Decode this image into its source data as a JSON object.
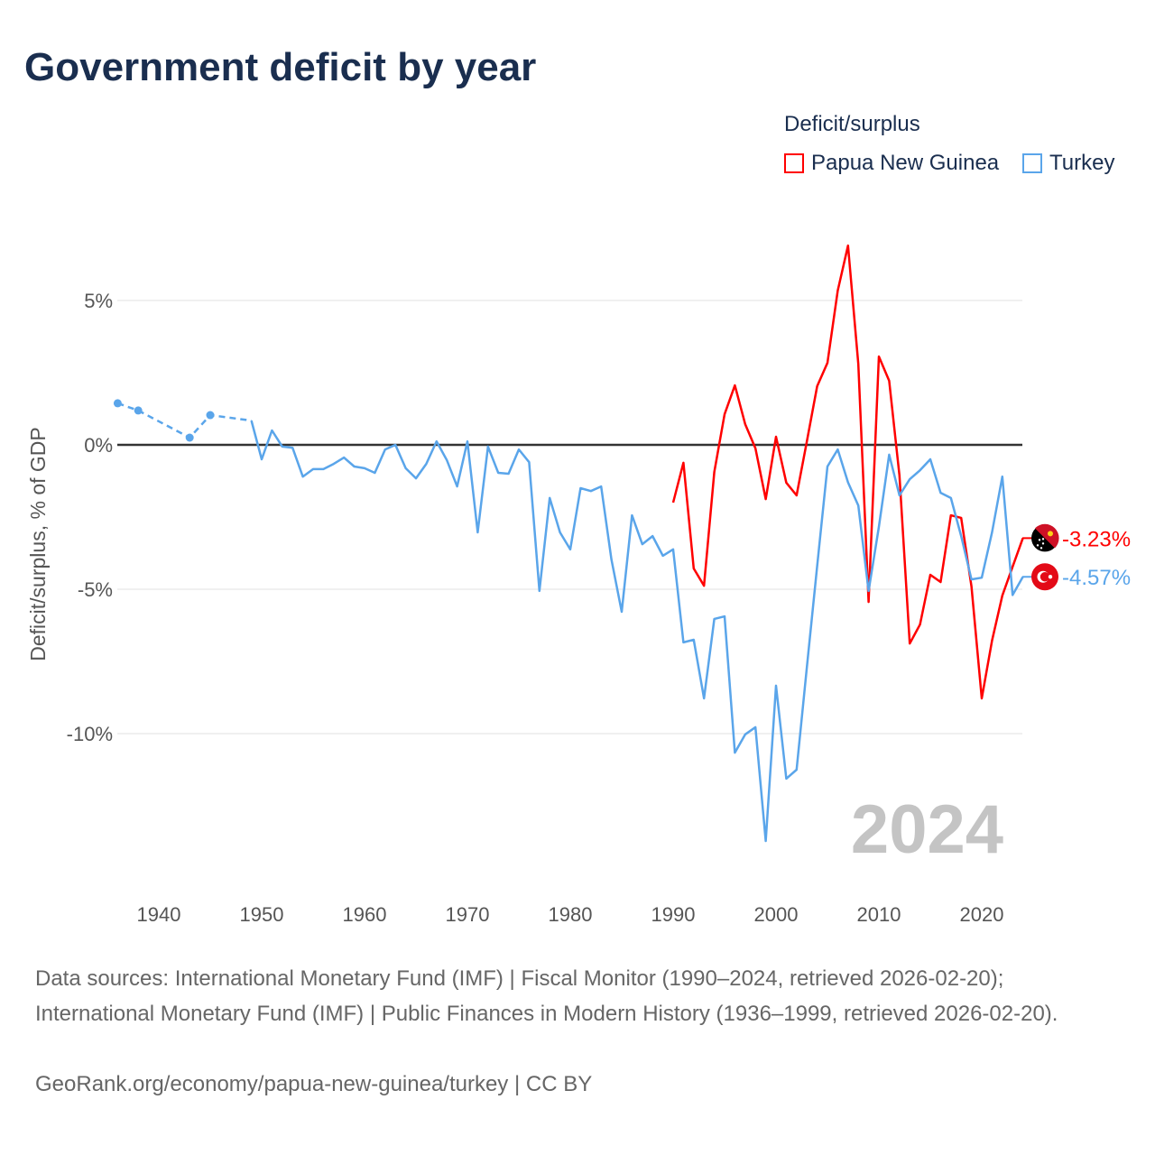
{
  "title": "Government deficit by year",
  "legend": {
    "title": "Deficit/surplus",
    "items": [
      {
        "label": "Papua New Guinea",
        "color": "#ff0000"
      },
      {
        "label": "Turkey",
        "color": "#5aa5ea"
      }
    ]
  },
  "chart_data": {
    "type": "line",
    "title": "Government deficit by year",
    "xlabel": "",
    "ylabel": "Deficit/surplus, % of GDP",
    "xlim": [
      1936,
      2024
    ],
    "ylim": [
      -14,
      7
    ],
    "x_ticks": [
      "1940",
      "1950",
      "1960",
      "1970",
      "1980",
      "1990",
      "2000",
      "2010",
      "2020"
    ],
    "y_ticks": [
      {
        "value": 5,
        "label": "5%"
      },
      {
        "value": 0,
        "label": "0%"
      },
      {
        "value": -5,
        "label": "-5%"
      },
      {
        "value": -10,
        "label": "-10%"
      }
    ],
    "current_year_label": "2024",
    "series": [
      {
        "name": "Papua New Guinea",
        "color": "#ff0000",
        "end_label": "-3.23%",
        "x": [
          1990,
          1991,
          1992,
          1993,
          1994,
          1995,
          1996,
          1997,
          1998,
          1999,
          2000,
          2001,
          2002,
          2003,
          2004,
          2005,
          2006,
          2007,
          2008,
          2009,
          2010,
          2011,
          2012,
          2013,
          2014,
          2015,
          2016,
          2017,
          2018,
          2019,
          2020,
          2021,
          2022,
          2023,
          2024
        ],
        "values": [
          -2.0,
          -0.62,
          -4.28,
          -4.88,
          -0.94,
          1.06,
          2.06,
          0.72,
          -0.12,
          -1.88,
          0.28,
          -1.31,
          -1.75,
          0.12,
          2.03,
          2.84,
          5.34,
          6.9,
          2.8,
          -5.44,
          3.06,
          2.22,
          -1.06,
          -6.88,
          -6.22,
          -4.5,
          -4.75,
          -2.44,
          -2.53,
          -4.9,
          -8.78,
          -6.78,
          -5.22,
          -4.22,
          -3.23
        ]
      },
      {
        "name": "Turkey",
        "color": "#5aa5ea",
        "end_label": "-4.57%",
        "sparse_x": [
          1936,
          1938,
          1943,
          1945,
          1949
        ],
        "sparse_values": [
          1.44,
          1.19,
          0.25,
          1.03,
          0.84
        ],
        "x": [
          1949,
          1950,
          1951,
          1952,
          1953,
          1954,
          1955,
          1956,
          1957,
          1958,
          1959,
          1960,
          1961,
          1962,
          1963,
          1964,
          1965,
          1966,
          1967,
          1968,
          1969,
          1970,
          1971,
          1972,
          1973,
          1974,
          1975,
          1976,
          1977,
          1978,
          1979,
          1980,
          1981,
          1982,
          1983,
          1984,
          1985,
          1986,
          1987,
          1988,
          1989,
          1990,
          1991,
          1992,
          1993,
          1994,
          1995,
          1996,
          1997,
          1998,
          1999,
          2000,
          2001,
          2002,
          2003,
          2004,
          2005,
          2006,
          2007,
          2008,
          2009,
          2010,
          2011,
          2012,
          2013,
          2014,
          2015,
          2016,
          2017,
          2018,
          2019,
          2020,
          2021,
          2022,
          2023,
          2024
        ],
        "values": [
          0.84,
          -0.5,
          0.5,
          -0.06,
          -0.1,
          -1.1,
          -0.84,
          -0.84,
          -0.66,
          -0.44,
          -0.75,
          -0.81,
          -0.97,
          -0.16,
          0,
          -0.81,
          -1.16,
          -0.66,
          0.12,
          -0.53,
          -1.44,
          0.12,
          -3.03,
          -0.06,
          -0.97,
          -1.0,
          -0.16,
          -0.6,
          -5.06,
          -1.84,
          -3.03,
          -3.62,
          -1.5,
          -1.6,
          -1.44,
          -3.97,
          -5.78,
          -2.44,
          -3.44,
          -3.16,
          -3.84,
          -3.62,
          -6.84,
          -6.75,
          -8.78,
          -6.03,
          -5.94,
          -10.66,
          -10.03,
          -9.78,
          -13.72,
          -8.34,
          -11.56,
          -11.25,
          -7.7,
          -4.2,
          -0.75,
          -0.16,
          -1.3,
          -2.1,
          -5.06,
          -2.84,
          -0.34,
          -1.75,
          -1.19,
          -0.88,
          -0.5,
          -1.66,
          -1.84,
          -3.16,
          -4.66,
          -4.6,
          -3.03,
          -1.1,
          -5.2,
          -4.57
        ]
      }
    ]
  },
  "footer": {
    "sources": "Data sources: International Monetary Fund (IMF) | Fiscal Monitor (1990–2024, retrieved 2026-02-20); International Monetary Fund (IMF) | Public Finances in Modern History (1936–1999, retrieved 2026-02-20).",
    "credit": "GeoRank.org/economy/papua-new-guinea/turkey | CC BY"
  }
}
